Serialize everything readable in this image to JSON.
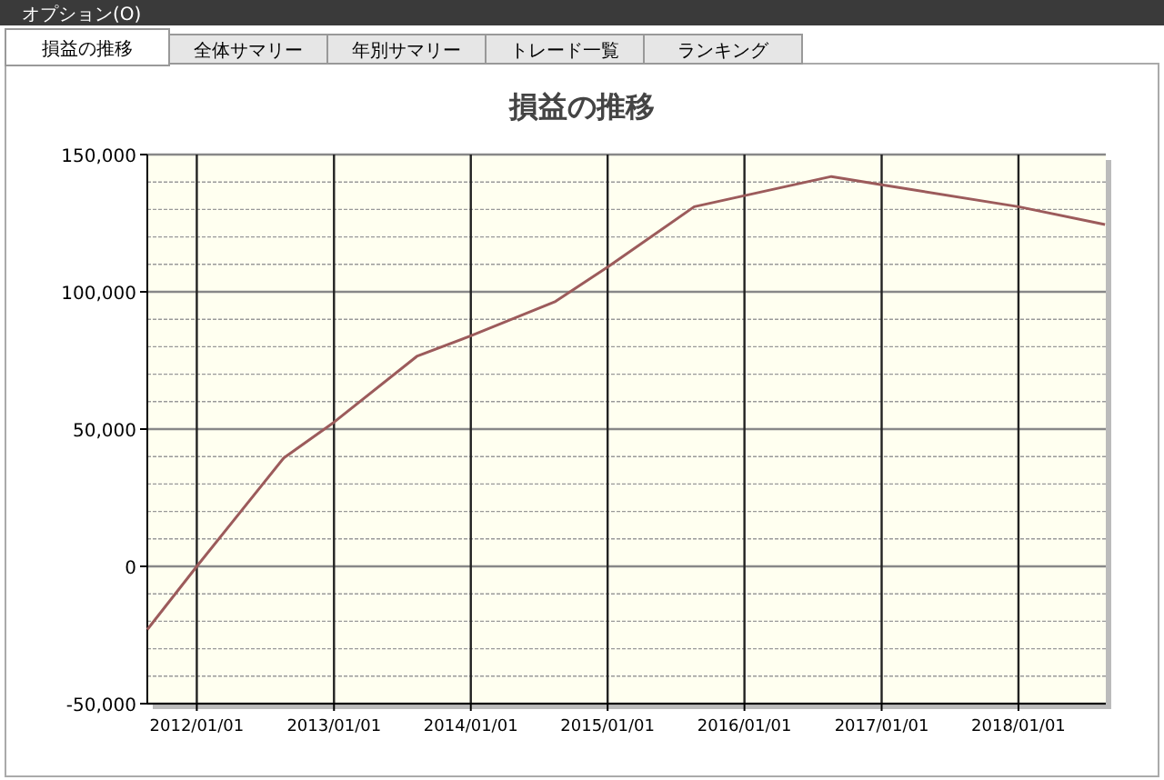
{
  "chart_data": {
    "type": "line",
    "title": "損益の推移",
    "annotations": [
      "オプション(O)",
      "損益の推移",
      "全体サマリー",
      "年別サマリー",
      "トレード一覧",
      "ランキング"
    ],
    "x": [
      "2011-08-22",
      "2012-01-01",
      "2012-08-20",
      "2013-01-01",
      "2013-08-10",
      "2014-01-01",
      "2014-08-15",
      "2015-01-01",
      "2015-08-20",
      "2016-08-20",
      "2017-01-01",
      "2018-01-01",
      "2018-08-20"
    ],
    "series": [
      {
        "color": "#9c5b5b",
        "values": [
          -23000,
          0,
          39500,
          52500,
          76500,
          84000,
          96500,
          109000,
          131000,
          142000,
          139000,
          131000,
          124500
        ]
      }
    ],
    "xlim": [
      "2011-08-22",
      "2018-08-22"
    ],
    "xticks": [
      {
        "value": "2012-01-01",
        "label": "2012/01/01"
      },
      {
        "value": "2013-01-01",
        "label": "2013/01/01"
      },
      {
        "value": "2014-01-01",
        "label": "2014/01/01"
      },
      {
        "value": "2015-01-01",
        "label": "2015/01/01"
      },
      {
        "value": "2016-01-01",
        "label": "2016/01/01"
      },
      {
        "value": "2017-01-01",
        "label": "2017/01/01"
      },
      {
        "value": "2018-01-01",
        "label": "2018/01/01"
      }
    ],
    "ylim": [
      -50000,
      150000
    ],
    "yticks": [
      {
        "value": -50000,
        "label": "-50,000"
      },
      0,
      {
        "value": 50000,
        "label": "50,000"
      },
      {
        "value": 100000,
        "label": "100,000"
      },
      {
        "value": 150000,
        "label": "150,000"
      }
    ],
    "grid": true,
    "marker": "none",
    "line_style": "solid"
  }
}
